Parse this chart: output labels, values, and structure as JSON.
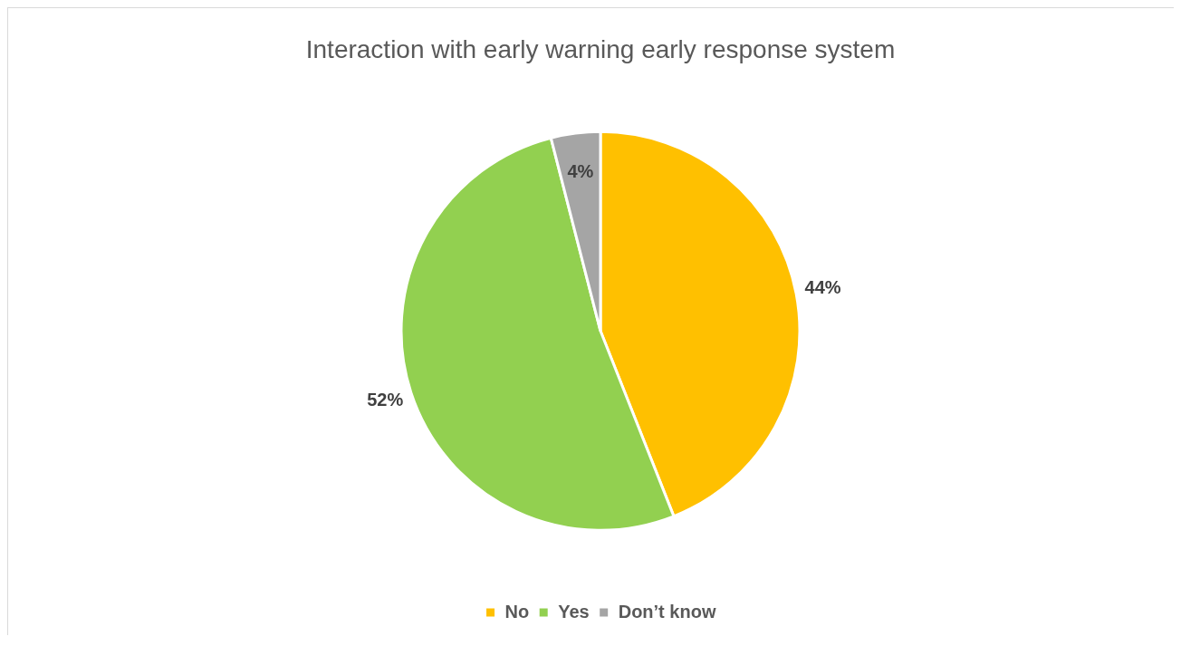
{
  "chart_data": {
    "type": "pie",
    "title": "Interaction with early warning early response system",
    "categories": [
      "No",
      "Yes",
      "Don’t know"
    ],
    "values": [
      44,
      52,
      4
    ],
    "colors": [
      "#ffc000",
      "#92d050",
      "#a5a5a5"
    ],
    "value_labels": [
      "44%",
      "52%",
      "4%"
    ],
    "legend": "bottom"
  }
}
